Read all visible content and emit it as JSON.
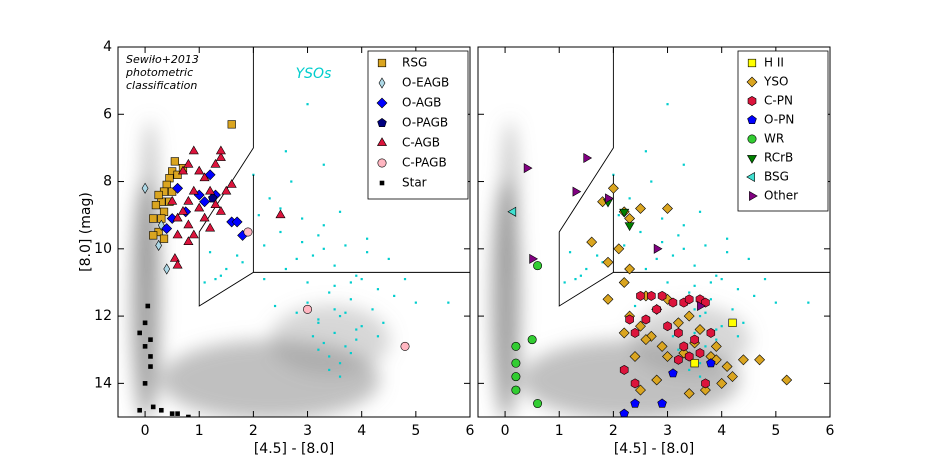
{
  "chart_data": [
    {
      "type": "scatter",
      "xlabel": "[4.5] - [8.0]",
      "ylabel": "[8.0] (mag)",
      "xlim": [
        -0.5,
        6
      ],
      "ylim": [
        15,
        4
      ],
      "xticks": [
        0,
        1,
        2,
        3,
        4,
        5,
        6
      ],
      "yticks": [
        4,
        6,
        8,
        10,
        12,
        14
      ],
      "annotation": [
        "Sewiło+2013",
        "photometric",
        "classification"
      ],
      "legend": "upper right",
      "boundary": [
        {
          "x": [
            2,
            2,
            1,
            1,
            2,
            6
          ],
          "y": [
            4,
            7,
            9.5,
            11.7,
            10.7,
            10.7
          ]
        },
        {
          "x": [
            2,
            2
          ],
          "y": [
            7.8,
            10.7
          ]
        }
      ],
      "background": {
        "name": "YSOs",
        "color": "#00cdcd",
        "x": [
          2.1,
          2.3,
          2.5,
          2.7,
          2.9,
          3.1,
          3.3,
          3.5,
          3.7,
          3.9,
          4.1,
          4.3,
          2.2,
          2.6,
          3.0,
          3.4,
          3.8,
          4.2,
          4.6,
          2.4,
          2.8,
          3.2,
          3.6,
          4.0,
          4.4,
          3.1,
          3.3,
          3.5,
          3.7,
          3.9,
          3.2,
          3.4,
          3.6,
          3.8,
          3.0,
          3.5,
          4.0,
          2.8,
          3.3,
          3.7,
          1.2,
          1.5,
          1.8,
          1.1,
          1.4,
          2.5,
          3.3,
          4.8,
          5.0,
          2.9,
          3.6,
          4.1,
          4.5,
          3.4,
          3.9,
          2.0,
          2.6,
          3.8,
          3.2,
          3.5,
          1.3,
          1.7,
          2.2,
          4.3,
          3.0,
          3.6,
          5.6,
          3.2
        ],
        "values": [
          9.0,
          8.5,
          9.5,
          8.0,
          9.8,
          10.2,
          9.3,
          10.5,
          9.9,
          10.8,
          10.1,
          11.2,
          10.9,
          10.6,
          11.0,
          11.3,
          11.5,
          11.8,
          11.4,
          11.7,
          11.9,
          12.1,
          12.0,
          12.3,
          12.2,
          12.6,
          12.8,
          12.5,
          12.9,
          12.7,
          13.0,
          13.2,
          13.4,
          13.1,
          11.6,
          11.1,
          10.9,
          10.3,
          10.0,
          11.9,
          10.1,
          10.6,
          10.4,
          11.0,
          10.8,
          8.8,
          7.5,
          10.9,
          11.6,
          9.1,
          8.9,
          9.7,
          10.3,
          13.6,
          12.4,
          7.8,
          7.1,
          11.0,
          12.2,
          11.8,
          10.9,
          10.2,
          9.9,
          12.6,
          5.7,
          13.8,
          11.6,
          9.6
        ]
      },
      "series": [
        {
          "name": "RSG",
          "color": "#daa520",
          "marker": "square",
          "x": [
            0.55,
            0.5,
            0.45,
            0.6,
            0.4,
            0.35,
            0.5,
            0.3,
            0.45,
            0.2,
            0.35,
            0.15,
            0.3,
            0.25,
            0.15,
            0.35,
            1.6,
            0.7,
            0.25
          ],
          "values": [
            7.4,
            7.7,
            7.9,
            7.8,
            8.1,
            8.3,
            8.3,
            8.6,
            8.6,
            8.7,
            8.9,
            9.1,
            9.1,
            9.5,
            9.6,
            9.7,
            6.3,
            7.6,
            8.4
          ]
        },
        {
          "name": "O-EAGB",
          "color": "#add8e6",
          "marker": "thin_diamond",
          "x": [
            0.0,
            0.25,
            0.4,
            0.3
          ],
          "values": [
            8.2,
            9.9,
            10.6,
            9.3
          ]
        },
        {
          "name": "O-AGB",
          "color": "#0000ff",
          "marker": "diamond",
          "x": [
            0.6,
            0.75,
            1.0,
            1.2,
            1.1,
            1.3,
            1.6,
            1.7,
            1.8,
            0.4,
            0.5
          ],
          "values": [
            8.2,
            8.9,
            8.4,
            7.8,
            8.6,
            8.4,
            9.2,
            9.2,
            9.6,
            9.4,
            9.1
          ]
        },
        {
          "name": "O-PAGB",
          "color": "#000080",
          "marker": "pentagon",
          "x": [
            1.25
          ],
          "values": [
            8.5
          ]
        },
        {
          "name": "C-AGB",
          "color": "#dc143c",
          "marker": "triangle_up",
          "x": [
            0.9,
            0.7,
            0.8,
            1.0,
            1.1,
            1.3,
            1.4,
            1.2,
            0.9,
            0.8,
            0.7,
            1.0,
            1.3,
            1.5,
            1.4,
            1.6,
            1.1,
            0.6,
            0.8,
            1.2,
            0.9,
            0.6,
            0.8,
            0.55,
            0.6,
            2.5,
            1.4,
            0.5
          ],
          "values": [
            7.1,
            7.7,
            7.5,
            7.7,
            7.9,
            7.5,
            7.3,
            8.3,
            8.3,
            8.6,
            8.9,
            8.8,
            8.7,
            8.3,
            8.9,
            8.1,
            9.1,
            9.1,
            9.3,
            9.4,
            9.6,
            9.6,
            9.8,
            10.3,
            10.5,
            9.0,
            7.1,
            8.6
          ]
        },
        {
          "name": "C-PAGB",
          "color": "#ffb6c1",
          "marker": "circle",
          "x": [
            1.9,
            3.0,
            4.8
          ],
          "values": [
            9.5,
            11.8,
            12.9
          ]
        },
        {
          "name": "Star",
          "color": "#000000",
          "marker": "small_square",
          "x": [
            -0.1,
            0.0,
            0.1,
            0.1,
            0.05,
            0.0,
            -0.1,
            0.0,
            0.15,
            0.3,
            0.5,
            0.6,
            0.8,
            0.1
          ],
          "values": [
            12.5,
            12.9,
            13.2,
            13.5,
            11.7,
            14.0,
            14.8,
            12.2,
            14.7,
            14.8,
            14.9,
            14.9,
            15.0,
            12.7
          ]
        }
      ]
    },
    {
      "type": "scatter",
      "xlabel": "[4.5] - [8.0]",
      "xlim": [
        -0.5,
        6
      ],
      "ylim": [
        15,
        4
      ],
      "xticks": [
        0,
        1,
        2,
        3,
        4,
        5,
        6
      ],
      "legend": "upper right",
      "series": [
        {
          "name": "H II",
          "color": "#ffff00",
          "marker": "square",
          "x": [
            4.2,
            3.5
          ],
          "values": [
            12.2,
            13.4
          ]
        },
        {
          "name": "YSO",
          "color": "#daa520",
          "marker": "diamond",
          "x": [
            2.0,
            1.8,
            2.2,
            2.3,
            1.6,
            2.1,
            2.5,
            3.0,
            1.9,
            2.3,
            2.2,
            1.9,
            2.3,
            2.5,
            2.7,
            2.2,
            2.9,
            3.0,
            3.3,
            3.5,
            3.8,
            3.9,
            4.1,
            4.4,
            4.7,
            5.2,
            4.2,
            3.6,
            3.2,
            2.8,
            2.6,
            3.0,
            3.4,
            3.9,
            4.0,
            3.7,
            3.4,
            2.5,
            2.8,
            2.4,
            2.6
          ],
          "values": [
            8.2,
            8.6,
            8.9,
            9.1,
            9.8,
            10.0,
            8.8,
            8.8,
            10.4,
            10.6,
            11.0,
            11.5,
            12.0,
            12.3,
            12.6,
            12.5,
            12.9,
            13.2,
            13.1,
            12.8,
            13.2,
            13.3,
            13.5,
            13.3,
            13.3,
            13.9,
            13.8,
            12.4,
            12.2,
            11.8,
            11.4,
            11.5,
            12.0,
            12.9,
            14.0,
            14.2,
            14.3,
            14.2,
            13.9,
            13.2,
            12.7
          ]
        },
        {
          "name": "C-PN",
          "color": "#dc143c",
          "marker": "hexagon",
          "x": [
            2.5,
            2.7,
            2.9,
            3.1,
            3.3,
            3.4,
            3.6,
            3.7,
            2.3,
            2.4,
            2.6,
            2.8,
            3.0,
            3.2,
            3.3,
            3.4,
            3.5,
            3.6,
            2.2,
            2.4,
            3.7,
            3.2,
            3.8
          ],
          "values": [
            11.4,
            11.4,
            11.4,
            11.6,
            11.6,
            11.5,
            11.5,
            11.6,
            12.1,
            12.5,
            12.1,
            11.8,
            12.3,
            12.5,
            12.9,
            13.2,
            12.7,
            13.1,
            13.6,
            14.0,
            14.0,
            13.3,
            12.5
          ]
        },
        {
          "name": "O-PN",
          "color": "#0000ff",
          "marker": "pentagon",
          "x": [
            2.2,
            2.4,
            2.9,
            3.1,
            3.8
          ],
          "values": [
            14.9,
            14.6,
            14.6,
            13.7,
            13.4
          ]
        },
        {
          "name": "WR",
          "color": "#32cd32",
          "marker": "circle",
          "x": [
            0.6,
            0.2,
            0.5,
            0.2,
            0.2,
            0.2,
            0.6
          ],
          "values": [
            10.5,
            12.9,
            12.7,
            13.4,
            13.8,
            14.2,
            14.6
          ]
        },
        {
          "name": "RCrB",
          "color": "#008000",
          "marker": "triangle_down",
          "x": [
            1.9,
            2.2,
            2.3
          ],
          "values": [
            8.6,
            8.9,
            9.3
          ]
        },
        {
          "name": "BSG",
          "color": "#40e0d0",
          "marker": "triangle_left",
          "x": [
            0.15
          ],
          "values": [
            8.9
          ]
        },
        {
          "name": "Other",
          "color": "#800080",
          "marker": "triangle_right",
          "x": [
            0.4,
            1.5,
            1.3,
            1.9,
            0.5,
            2.8,
            3.6
          ],
          "values": [
            7.6,
            7.3,
            8.3,
            8.5,
            10.3,
            10.0,
            11.7
          ]
        }
      ]
    }
  ]
}
